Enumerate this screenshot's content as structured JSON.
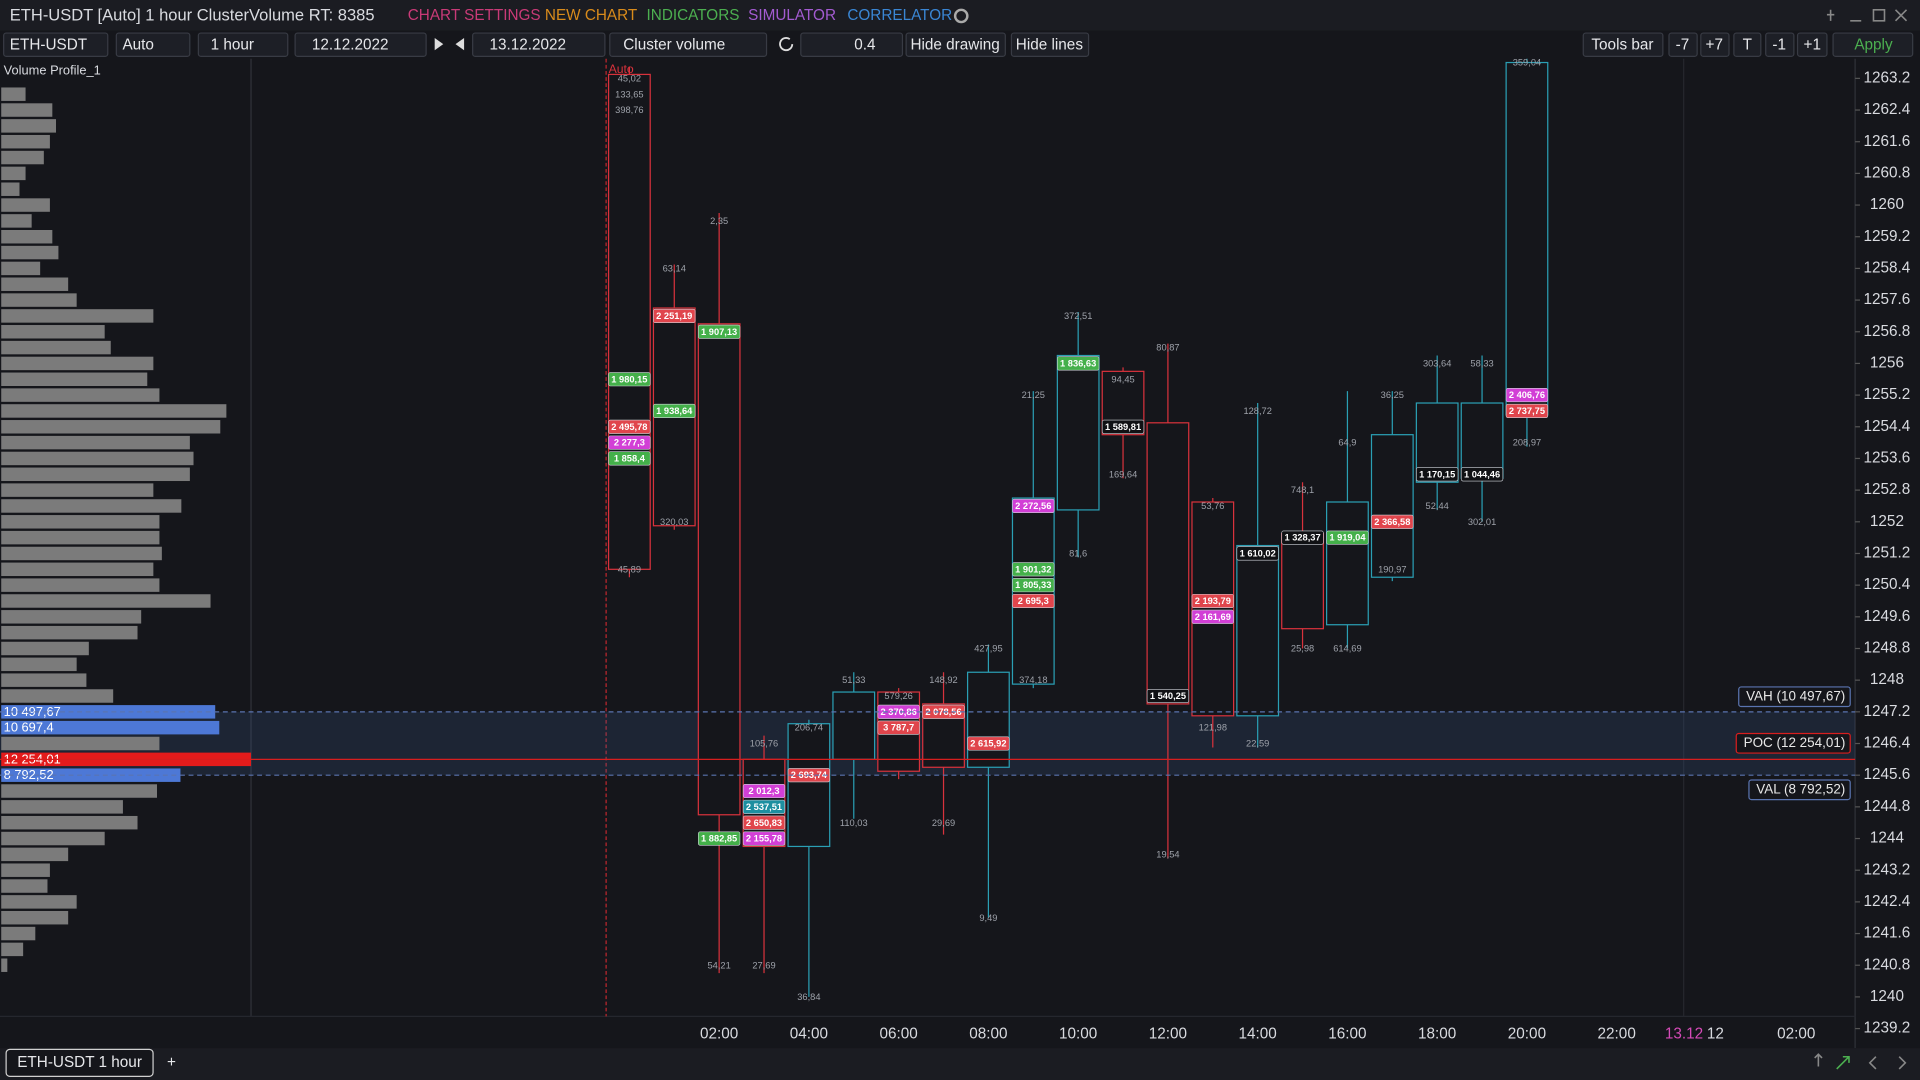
{
  "header": {
    "title": "ETH-USDT [Auto] 1 hour ClusterVolume RT: 8385",
    "menu": [
      "CHART SETTINGS",
      "NEW CHART",
      "INDICATORS",
      "SIMULATOR",
      "CORRELATOR"
    ]
  },
  "toolbar": {
    "symbol": "ETH-USDT",
    "mode": "Auto",
    "timeframe": "1 hour",
    "date_from": "12.12.2022",
    "date_to": "13.12.2022",
    "chart_type": "Cluster volume",
    "step": 0.4,
    "buttons": [
      "Hide drawing",
      "Hide lines"
    ],
    "right_buttons": [
      "Tools bar",
      "-7",
      "+7",
      "T",
      "-1",
      "+1"
    ],
    "apply": "Apply"
  },
  "footer": {
    "tab": "ETH-USDT 1 hour",
    "add": "+"
  },
  "chart_data": {
    "type": "candlestick",
    "indicator_name": "Volume Profile_1",
    "auto_label": "Auto",
    "ylim": [
      1239.2,
      1263.2
    ],
    "yticks": [
      1263.2,
      1262.4,
      1261.6,
      1260.8,
      1260,
      1259.2,
      1258.4,
      1257.6,
      1256.8,
      1256,
      1255.2,
      1254.4,
      1253.6,
      1252.8,
      1252,
      1251.2,
      1250.4,
      1249.6,
      1248.8,
      1248,
      1247.2,
      1246.4,
      1245.6,
      1244.8,
      1244,
      1243.2,
      1242.4,
      1241.6,
      1240.8,
      1240,
      1239.2
    ],
    "x_labels": [
      "02:00",
      "04:00",
      "06:00",
      "08:00",
      "10:00",
      "12:00",
      "14:00",
      "16:00",
      "18:00",
      "20:00",
      "22:00",
      "13.12",
      "12",
      "02:00"
    ],
    "up_color": "#2a9fb4",
    "down_color": "#d8323c",
    "candles": [
      {
        "open": 1263.3,
        "high": 1263.5,
        "low": 1250.6,
        "close": 1250.8,
        "cells": [
          {
            "price": 1263.2,
            "value": 45.02,
            "label": "45,02"
          },
          {
            "price": 1262.8,
            "value": 133.65,
            "label": "133,65"
          },
          {
            "price": 1262.4,
            "value": 398.76,
            "label": "398,76"
          },
          {
            "price": 1255.6,
            "value": 1980.15,
            "label": "1 980,15",
            "color": "#44b04a"
          },
          {
            "price": 1254.4,
            "value": 2495.78,
            "label": "2 495,78",
            "color": "#e0454c"
          },
          {
            "price": 1254,
            "value": 2277.3,
            "label": "2 277,3",
            "color": "#d23fd6"
          },
          {
            "price": 1253.6,
            "value": 1858.4,
            "label": "1 858,4",
            "color": "#44b04a"
          },
          {
            "price": 1250.8,
            "value": 45.89,
            "label": "45,89"
          }
        ]
      },
      {
        "open": 1257.4,
        "high": 1258.5,
        "low": 1251.8,
        "close": 1251.9,
        "cells": [
          {
            "price": 1258.4,
            "value": 63.14,
            "label": "63,14"
          },
          {
            "price": 1257.2,
            "value": 2251.19,
            "label": "2 251,19",
            "color": "#e0454c"
          },
          {
            "price": 1254.8,
            "value": 1938.64,
            "label": "1 938,64",
            "color": "#44b04a"
          },
          {
            "price": 1252,
            "value": 320.03,
            "label": "320,03"
          }
        ]
      },
      {
        "open": 1257,
        "high": 1259.8,
        "low": 1240.6,
        "close": 1244.6,
        "cells": [
          {
            "price": 1259.6,
            "value": 2.35,
            "label": "2,35"
          },
          {
            "price": 1256.8,
            "value": 1907.13,
            "label": "1 907,13",
            "color": "#44b04a"
          },
          {
            "price": 1244,
            "value": 1882.85,
            "label": "1 882,85",
            "color": "#44b04a"
          },
          {
            "price": 1240.8,
            "value": 54.21,
            "label": "54,21"
          }
        ]
      },
      {
        "open": 1246,
        "high": 1246.6,
        "low": 1240.6,
        "close": 1243.8,
        "cells": [
          {
            "price": 1246.4,
            "value": 105.76,
            "label": "105,76"
          },
          {
            "price": 1245.2,
            "value": 2012.3,
            "label": "2 012,3",
            "color": "#d23fd6"
          },
          {
            "price": 1244.8,
            "value": 2537.51,
            "label": "2 537,51",
            "color": "#1d8fa0"
          },
          {
            "price": 1244.4,
            "value": 2650.83,
            "label": "2 650,83",
            "color": "#e0454c"
          },
          {
            "price": 1244,
            "value": 2155.78,
            "label": "2 155,78",
            "color": "#d23fd6"
          },
          {
            "price": 1240.8,
            "value": 27.69,
            "label": "27,69"
          }
        ]
      },
      {
        "open": 1243.8,
        "high": 1247,
        "low": 1240,
        "close": 1246.9,
        "cells": [
          {
            "price": 1246.8,
            "value": 206.74,
            "label": "206,74"
          },
          {
            "price": 1245.6,
            "value": 2693.74,
            "label": "2 693,74",
            "color": "#e0454c"
          },
          {
            "price": 1240,
            "value": 36.84,
            "label": "36,84"
          }
        ]
      },
      {
        "open": 1246,
        "high": 1248.2,
        "low": 1244.5,
        "close": 1247.7,
        "cells": [
          {
            "price": 1248,
            "value": 51.33,
            "label": "51,33"
          },
          {
            "price": 1244.4,
            "value": 110.03,
            "label": "110,03"
          }
        ]
      },
      {
        "open": 1247.7,
        "high": 1247.8,
        "low": 1245.5,
        "close": 1245.7,
        "cells": [
          {
            "price": 1247.6,
            "value": 579.26,
            "label": "579,26"
          },
          {
            "price": 1247.2,
            "value": 2370.86,
            "label": "2 370,86",
            "color": "#d23fd6"
          },
          {
            "price": 1246.8,
            "value": 3787.7,
            "label": "3 787,7",
            "color": "#e0454c"
          }
        ]
      },
      {
        "open": 1247.4,
        "high": 1248.2,
        "low": 1244.1,
        "close": 1245.8,
        "cells": [
          {
            "price": 1248,
            "value": 148.92,
            "label": "148,92"
          },
          {
            "price": 1247.2,
            "value": 2078.56,
            "label": "2 078,56",
            "color": "#e0454c"
          },
          {
            "price": 1244.4,
            "value": 29.69,
            "label": "29,69"
          }
        ]
      },
      {
        "open": 1245.8,
        "high": 1248.9,
        "low": 1242,
        "close": 1248.2,
        "cells": [
          {
            "price": 1248.8,
            "value": 427.95,
            "label": "427,95"
          },
          {
            "price": 1246.4,
            "value": 2615.92,
            "label": "2 615,92",
            "color": "#e0454c"
          },
          {
            "price": 1242,
            "value": 9.49,
            "label": "9,49"
          }
        ]
      },
      {
        "open": 1247.9,
        "high": 1255.3,
        "low": 1247.8,
        "close": 1252.6,
        "cells": [
          {
            "price": 1255.2,
            "value": 21.25,
            "label": "21,25"
          },
          {
            "price": 1252.4,
            "value": 2272.56,
            "label": "2 272,56",
            "color": "#d23fd6"
          },
          {
            "price": 1250.8,
            "value": 1901.32,
            "label": "1 901,32",
            "color": "#44b04a"
          },
          {
            "price": 1250.4,
            "value": 1805.33,
            "label": "1 805,33",
            "color": "#44b04a"
          },
          {
            "price": 1250,
            "value": 2695.3,
            "label": "2 695,3",
            "color": "#e0454c"
          },
          {
            "price": 1248,
            "value": 374.18,
            "label": "374,18"
          }
        ]
      },
      {
        "open": 1252.3,
        "high": 1257.3,
        "low": 1251.1,
        "close": 1256.2,
        "cells": [
          {
            "price": 1257.2,
            "value": 372.51,
            "label": "372,51"
          },
          {
            "price": 1256,
            "value": 1836.63,
            "label": "1 836,63",
            "color": "#44b04a"
          },
          {
            "price": 1251.2,
            "value": 81.6,
            "label": "81,6"
          }
        ]
      },
      {
        "open": 1255.8,
        "high": 1255.9,
        "low": 1253.1,
        "close": 1254.2,
        "cells": [
          {
            "price": 1255.6,
            "value": 94.45,
            "label": "94,45"
          },
          {
            "price": 1254.4,
            "value": 1589.81,
            "label": "1 589,81",
            "color": "#101114"
          },
          {
            "price": 1253.2,
            "value": 169.64,
            "label": "169,64"
          }
        ]
      },
      {
        "open": 1254.5,
        "high": 1256.5,
        "low": 1243.5,
        "close": 1247.4,
        "cells": [
          {
            "price": 1256.4,
            "value": 80.87,
            "label": "80,87"
          },
          {
            "price": 1247.6,
            "value": 1540.25,
            "label": "1 540,25",
            "color": "#101114"
          },
          {
            "price": 1243.6,
            "value": 19.54,
            "label": "19,54"
          }
        ]
      },
      {
        "open": 1252.5,
        "high": 1252.6,
        "low": 1246.3,
        "close": 1247.1,
        "cells": [
          {
            "price": 1252.4,
            "value": 53.76,
            "label": "53,76"
          },
          {
            "price": 1250,
            "value": 2193.79,
            "label": "2 193,79",
            "color": "#e0454c"
          },
          {
            "price": 1249.6,
            "value": 2161.69,
            "label": "2 161,69",
            "color": "#d23fd6"
          },
          {
            "price": 1246.8,
            "value": 121.98,
            "label": "121,98"
          }
        ]
      },
      {
        "open": 1247.1,
        "high": 1255,
        "low": 1246.3,
        "close": 1251.4,
        "cells": [
          {
            "price": 1254.8,
            "value": 128.72,
            "label": "128,72"
          },
          {
            "price": 1251.2,
            "value": 1610.02,
            "label": "1 610,02",
            "color": "#101114"
          },
          {
            "price": 1246.4,
            "value": 22.59,
            "label": "22,59"
          }
        ]
      },
      {
        "open": 1251.7,
        "high": 1253,
        "low": 1248.8,
        "close": 1249.3,
        "cells": [
          {
            "price": 1252.8,
            "value": 748.1,
            "label": "748,1"
          },
          {
            "price": 1251.6,
            "value": 1328.37,
            "label": "1 328,37",
            "color": "#101114"
          },
          {
            "price": 1248.8,
            "value": 25.98,
            "label": "25,98"
          }
        ]
      },
      {
        "open": 1249.4,
        "high": 1255.3,
        "low": 1248.8,
        "close": 1252.5,
        "cells": [
          {
            "price": 1254,
            "value": 64.9,
            "label": "64,9"
          },
          {
            "price": 1251.6,
            "value": 1919.04,
            "label": "1 919,04",
            "color": "#44b04a"
          },
          {
            "price": 1248.8,
            "value": 614.69,
            "label": "614,69"
          }
        ]
      },
      {
        "open": 1250.6,
        "high": 1255.3,
        "low": 1250.5,
        "close": 1254.2,
        "cells": [
          {
            "price": 1255.2,
            "value": 36.25,
            "label": "36,25"
          },
          {
            "price": 1252,
            "value": 2366.58,
            "label": "2 366,58",
            "color": "#e0454c"
          },
          {
            "price": 1250.8,
            "value": 190.97,
            "label": "190,97"
          }
        ]
      },
      {
        "open": 1253,
        "high": 1256.2,
        "low": 1252.3,
        "close": 1255,
        "cells": [
          {
            "price": 1256,
            "value": 303.64,
            "label": "303,64"
          },
          {
            "price": 1253.2,
            "value": 1170.15,
            "label": "1 170,15",
            "color": "#101114"
          },
          {
            "price": 1252.4,
            "value": 52.44,
            "label": "52,44"
          }
        ]
      },
      {
        "open": 1253.1,
        "high": 1256.2,
        "low": 1252,
        "close": 1255,
        "cells": [
          {
            "price": 1256,
            "value": 58.33,
            "label": "58,33"
          },
          {
            "price": 1253.2,
            "value": 1044.46,
            "label": "1 044,46",
            "color": "#101114"
          },
          {
            "price": 1252,
            "value": 302.01,
            "label": "302,01"
          }
        ]
      },
      {
        "open": 1254.7,
        "high": 1263.8,
        "low": 1253.9,
        "close": 1263.6,
        "cells": [
          {
            "price": 1263.6,
            "value": 359.04,
            "label": "359,04"
          },
          {
            "price": 1255.2,
            "value": 2406.76,
            "label": "2 406,76",
            "color": "#d23fd6"
          },
          {
            "price": 1254.8,
            "value": 2737.75,
            "label": "2 737,75",
            "color": "#e0454c"
          },
          {
            "price": 1254,
            "value": 208.97,
            "label": "208,97"
          }
        ]
      }
    ],
    "volume_profile": {
      "color": "#7b7b7b",
      "value_area_color": "#4d78d6",
      "poc_color": "#e31b1b",
      "prices": [
        1262.8,
        1262.4,
        1262,
        1261.6,
        1261.2,
        1260.8,
        1260.4,
        1260,
        1259.6,
        1259.2,
        1258.8,
        1258.4,
        1258,
        1257.6,
        1257.2,
        1256.8,
        1256.4,
        1256,
        1255.6,
        1255.2,
        1254.8,
        1254.4,
        1254,
        1253.6,
        1253.2,
        1252.8,
        1252.4,
        1252,
        1251.6,
        1251.2,
        1250.8,
        1250.4,
        1250,
        1249.6,
        1249.2,
        1248.8,
        1248.4,
        1248,
        1247.6,
        1247.2,
        1246.8,
        1246.4,
        1246,
        1245.6,
        1245.2,
        1244.8,
        1244.4,
        1244,
        1243.6,
        1243.2,
        1242.8,
        1242.4,
        1242,
        1241.6,
        1241.2,
        1240.8
      ],
      "values": [
        1194,
        2507,
        2687,
        2388,
        2090,
        1194,
        896,
        2388,
        1493,
        2507,
        2806,
        1910,
        3284,
        3701,
        7463,
        5075,
        5373,
        7463,
        7164,
        7761,
        11045,
        10746,
        9254,
        9433,
        9254,
        7463,
        8836,
        7761,
        7761,
        7880,
        7463,
        7761,
        10268,
        6866,
        6686,
        4298,
        3701,
        4179,
        5492,
        10497.67,
        10697.4,
        7761,
        12254.01,
        8792.52,
        7642,
        5970,
        6686,
        5075,
        3284,
        2388,
        2269,
        3701,
        3284,
        1672,
        1075,
        299
      ],
      "value_labels": [
        null,
        null,
        null,
        null,
        null,
        null,
        null,
        null,
        null,
        null,
        null,
        null,
        null,
        null,
        null,
        null,
        null,
        null,
        null,
        null,
        null,
        null,
        null,
        null,
        null,
        null,
        null,
        null,
        null,
        null,
        null,
        null,
        null,
        null,
        null,
        null,
        null,
        null,
        null,
        "10 497,67",
        "10 697,4",
        null,
        "12 254,01",
        "8 792,52",
        null,
        null,
        null,
        null,
        null,
        null,
        null,
        null,
        null,
        null,
        null,
        null
      ]
    },
    "levels": [
      {
        "label": "VAH (10 497,67)",
        "price": 1247.2,
        "color": "#5a74b0"
      },
      {
        "label": "POC (12 254,01)",
        "price": 1246,
        "color": "#d81e1e"
      },
      {
        "label": "VAL (8 792,52)",
        "price": 1245.6,
        "color": "#5a74b0"
      }
    ]
  }
}
